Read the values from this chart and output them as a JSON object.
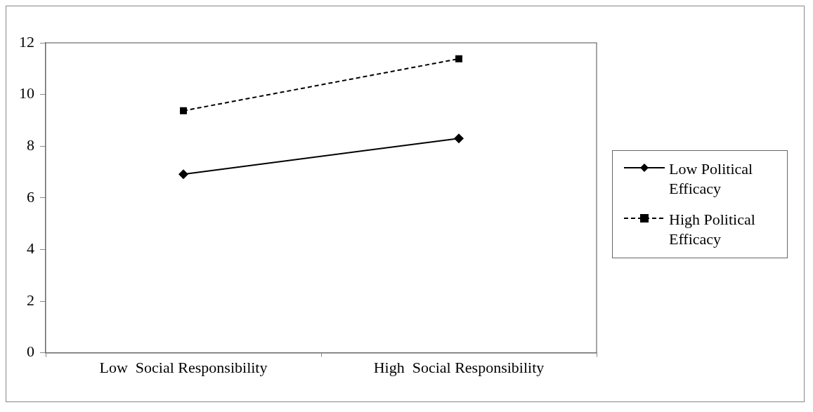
{
  "chart_data": {
    "type": "line",
    "categories": [
      "Low  Social Responsibility",
      "High  Social Responsibility"
    ],
    "series": [
      {
        "name": "Low Political Efficacy",
        "color": "#000000",
        "values": [
          6.91,
          8.3
        ],
        "marker": "diamond",
        "line_style": "solid"
      },
      {
        "name": "High Political Efficacy",
        "color": "#000000",
        "values": [
          9.37,
          11.38
        ],
        "marker": "square",
        "line_style": "dashed"
      }
    ],
    "ylim": [
      0,
      12
    ],
    "yticks": [
      0,
      2,
      4,
      6,
      8,
      10,
      12
    ],
    "grid": false,
    "legend": "right"
  }
}
